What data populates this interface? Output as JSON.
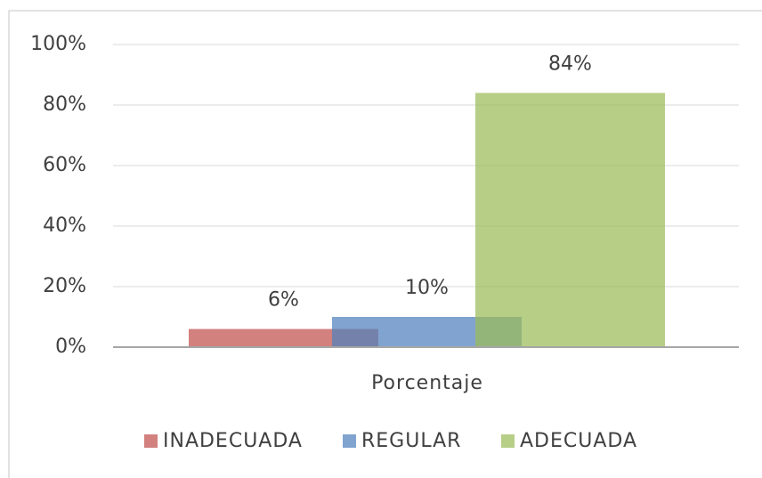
{
  "chart_data": {
    "type": "bar",
    "categories": [
      "Porcentaje"
    ],
    "series": [
      {
        "name": "INADECUADA",
        "color": "#c0504d",
        "values": [
          6
        ],
        "value_labels": [
          "6%"
        ]
      },
      {
        "name": "REGULAR",
        "color": "#4f81bd",
        "values": [
          10
        ],
        "value_labels": [
          "10%"
        ]
      },
      {
        "name": "ADECUADA",
        "color": "#9bbb59",
        "values": [
          84
        ],
        "value_labels": [
          "84%"
        ]
      }
    ],
    "ylim": [
      0,
      100
    ],
    "yticks": [
      {
        "value": 0,
        "label": "0%"
      },
      {
        "value": 20,
        "label": "20%"
      },
      {
        "value": 40,
        "label": "40%"
      },
      {
        "value": 60,
        "label": "60%"
      },
      {
        "value": 80,
        "label": "80%"
      },
      {
        "value": 100,
        "label": "100%"
      }
    ],
    "grid": true,
    "legend": "bottom"
  }
}
